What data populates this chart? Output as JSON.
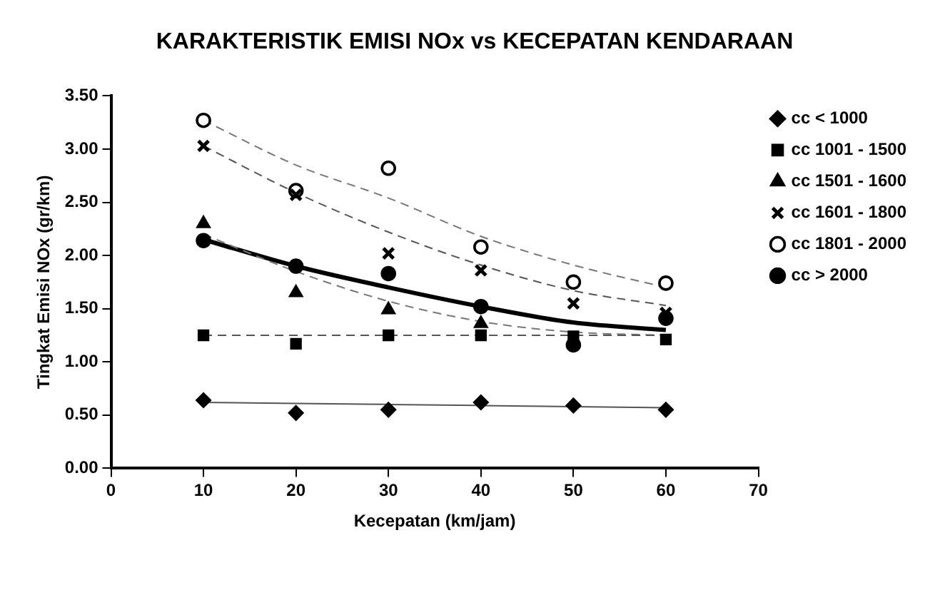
{
  "chart_data": {
    "type": "scatter",
    "title": "KARAKTERISTIK EMISI NOx vs KECEPATAN KENDARAAN",
    "xlabel": "Kecepatan (km/jam)",
    "ylabel": "Tingkat Emisi NOx (gr/km)",
    "x": [
      10,
      20,
      30,
      40,
      50,
      60
    ],
    "xlim": [
      0,
      70
    ],
    "xticks": [
      0,
      10,
      20,
      30,
      40,
      50,
      60,
      70
    ],
    "ylim": [
      0,
      3.5
    ],
    "yticks": [
      {
        "value": 0,
        "label": "0.00"
      },
      {
        "value": 0.5,
        "label": "0.50"
      },
      {
        "value": 1,
        "label": "1.00"
      },
      {
        "value": 1.5,
        "label": "1.50"
      },
      {
        "value": 2,
        "label": "2.00"
      },
      {
        "value": 2.5,
        "label": "2.50"
      },
      {
        "value": 3,
        "label": "3.00"
      },
      {
        "value": 3.5,
        "label": "3.50"
      }
    ],
    "grid": false,
    "legend": "right",
    "series": [
      {
        "name": "cc < 1000",
        "color": "#000000",
        "marker": "diamond",
        "values": [
          0.64,
          0.52,
          0.55,
          0.62,
          0.59,
          0.55
        ]
      },
      {
        "name": "cc 1001 - 1500",
        "color": "#000000",
        "marker": "square",
        "values": [
          1.25,
          1.17,
          1.25,
          1.25,
          1.24,
          1.21
        ]
      },
      {
        "name": "cc 1501 - 1600",
        "color": "#000000",
        "marker": "triangle",
        "values": [
          2.3,
          1.65,
          1.49,
          1.36,
          null,
          null
        ]
      },
      {
        "name": "cc 1601 - 1800",
        "color": "#000000",
        "marker": "cross",
        "values": [
          3.03,
          2.57,
          2.02,
          1.86,
          1.55,
          1.46
        ]
      },
      {
        "name": "cc 1801 - 2000",
        "color": "#ffffff",
        "marker": "circle",
        "values": [
          3.27,
          2.61,
          2.82,
          2.08,
          1.75,
          1.74
        ]
      },
      {
        "name": "cc > 2000",
        "color": "#000000",
        "marker": "circle",
        "values": [
          2.14,
          1.9,
          1.83,
          1.52,
          1.16,
          1.41
        ]
      },
      {
        "type": "line",
        "color": "#555555",
        "line_style": "solid",
        "values": [
          0.62,
          0.61,
          0.6,
          0.59,
          0.58,
          0.57
        ]
      },
      {
        "type": "line",
        "color": "#555555",
        "line_style": "dashed",
        "values": [
          1.25,
          1.25,
          1.25,
          1.25,
          1.25,
          1.25
        ]
      },
      {
        "type": "line",
        "color": "#777777",
        "line_style": "dashed",
        "values": [
          2.2,
          1.85,
          1.57,
          1.38,
          1.28,
          1.25
        ]
      },
      {
        "type": "line",
        "color": "#555555",
        "line_style": "dashed",
        "values": [
          3.03,
          2.59,
          2.22,
          1.91,
          1.67,
          1.53
        ]
      },
      {
        "type": "line",
        "color": "#777777",
        "line_style": "dashed",
        "values": [
          3.27,
          2.85,
          2.54,
          2.18,
          1.91,
          1.7
        ]
      },
      {
        "type": "line",
        "color": "#000000",
        "line_style": "solid",
        "values": [
          2.15,
          1.9,
          1.7,
          1.52,
          1.37,
          1.3
        ]
      }
    ]
  }
}
